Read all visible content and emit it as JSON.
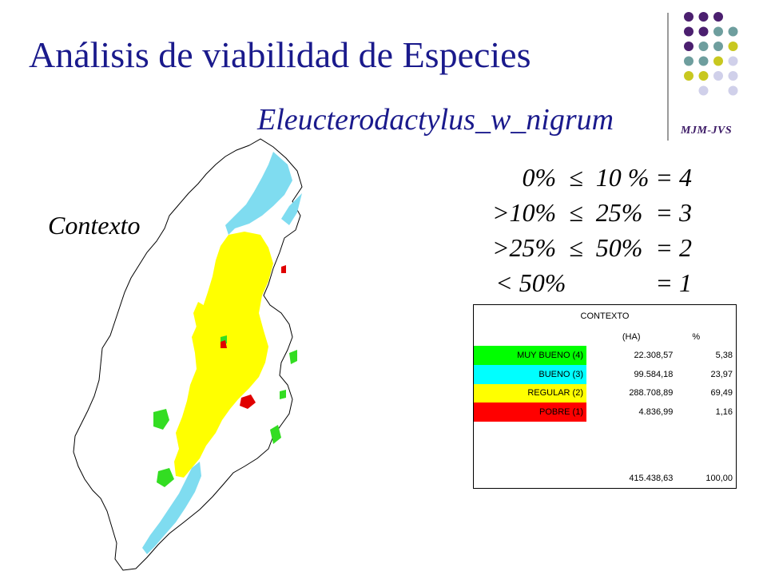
{
  "title": "Análisis de viabilidad de Especies",
  "subtitle": "Eleucterodactylus_w_nigrum",
  "initials": "MJM-JVS",
  "map_label": "Contexto",
  "rules": [
    "0%  ≤  10 % = 4",
    ">10%  ≤  25%  = 3",
    ">25%  ≤  50%  = 2",
    "< 50%              = 1"
  ],
  "table": {
    "header": "CONTEXTO",
    "col_ha": "(HA)",
    "col_pct": "%",
    "rows": [
      {
        "label": "MUY BUENO (4)",
        "ha": "22.308,57",
        "pct": "5,38",
        "color": "#00ff00"
      },
      {
        "label": "BUENO (3)",
        "ha": "99.584,18",
        "pct": "23,97",
        "color": "#00ffff"
      },
      {
        "label": "REGULAR (2)",
        "ha": "288.708,89",
        "pct": "69,49",
        "color": "#ffff00"
      },
      {
        "label": "POBRE (1)",
        "ha": "4.836,99",
        "pct": "1,16",
        "color": "#ff0000"
      }
    ],
    "total_ha": "415.438,63",
    "total_pct": "100,00"
  },
  "map_colors": {
    "muy_bueno": "#33dd22",
    "bueno": "#7fdcf0",
    "regular": "#ffff00",
    "pobre": "#e00000"
  },
  "dot_colors": [
    "#4b1f6f",
    "#6e9e9e",
    "#c8c820",
    "#d0d0ea"
  ]
}
